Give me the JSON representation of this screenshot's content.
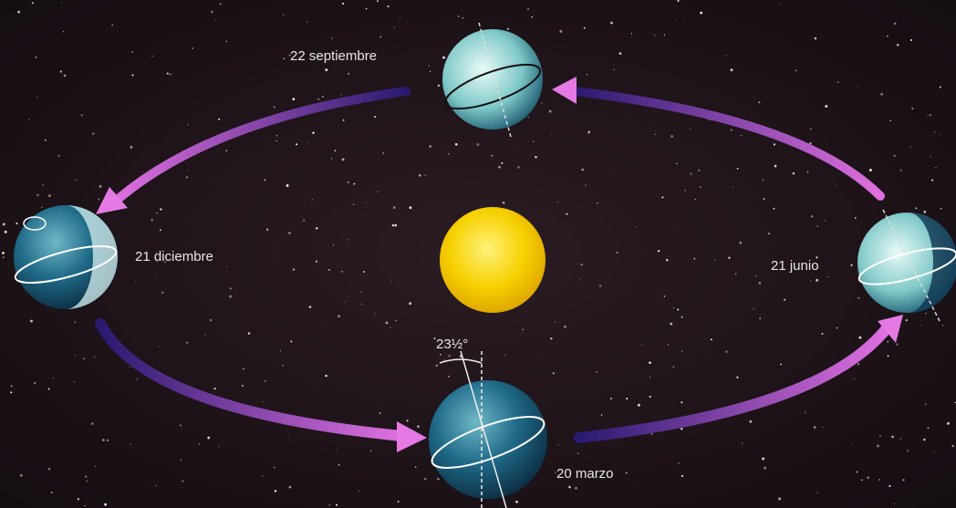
{
  "nodes": [
    {
      "label": "22 septiembre"
    },
    {
      "label": "21 diciembre"
    },
    {
      "label": "21 junio"
    },
    {
      "label": "20 marzo"
    }
  ],
  "tilt_label": "23½°"
}
